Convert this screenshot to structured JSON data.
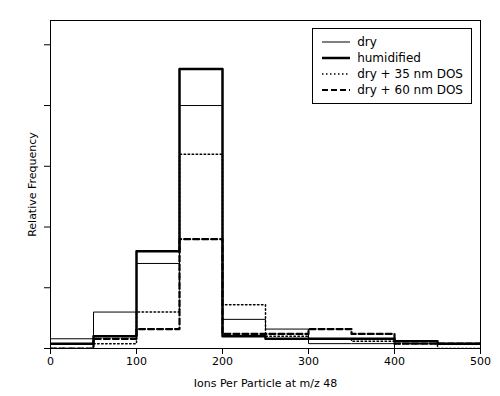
{
  "chart_data": {
    "type": "histogram",
    "xlabel": "Ions Per Particle at m/z 48",
    "ylabel": "Relative Frequency",
    "bins": [
      0,
      50,
      100,
      150,
      200,
      250,
      300,
      350,
      400,
      450,
      500
    ],
    "series": [
      {
        "name": "dry",
        "color": "black",
        "line_style": "solid",
        "values": [
          0.04,
          0.15,
          0.35,
          1.0,
          0.12,
          0.08,
          0.02,
          0.02,
          0.0,
          0.0
        ]
      },
      {
        "name": "humidified",
        "color": "black",
        "line_style": "solid",
        "values": [
          0.02,
          0.05,
          0.4,
          1.15,
          0.05,
          0.04,
          0.04,
          0.04,
          0.03,
          0.02
        ]
      },
      {
        "name": "dry + 35 nm DOS",
        "color": "black",
        "line_style": "dotted",
        "values": [
          0.0,
          0.02,
          0.15,
          0.8,
          0.18,
          0.05,
          0.04,
          0.03,
          0.02,
          0.0
        ]
      },
      {
        "name": "dry + 60 nm DOS",
        "color": "black",
        "line_style": "dashed",
        "values": [
          0.0,
          0.04,
          0.08,
          0.45,
          0.06,
          0.06,
          0.08,
          0.06,
          0.02,
          0.02
        ]
      }
    ],
    "xlim": [
      0,
      500
    ],
    "ylim": [
      0,
      1.35
    ],
    "xticks": [
      0,
      100,
      200,
      300,
      400,
      500
    ],
    "yticks": [
      0.0,
      0.25,
      0.5,
      0.75,
      1.0,
      1.25
    ],
    "tick_labels": "x",
    "grid": false,
    "legend": "upper right"
  }
}
